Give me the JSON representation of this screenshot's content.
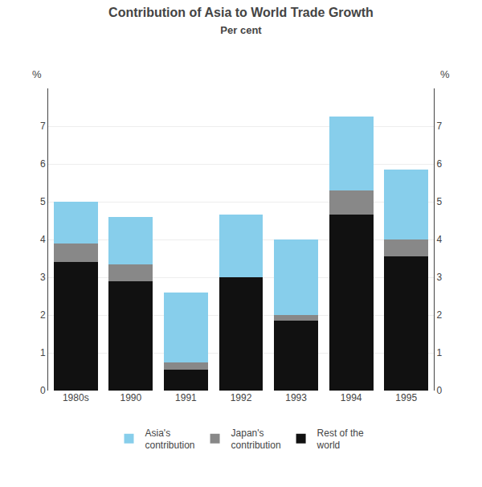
{
  "chart_data": {
    "type": "bar",
    "stacked": true,
    "title": "Contribution of Asia to World Trade Growth",
    "subtitle": "Per cent",
    "categories": [
      "1980s",
      "1990",
      "1991",
      "1992",
      "1993",
      "1994",
      "1995"
    ],
    "series": [
      {
        "name": "Rest of the\nworld",
        "color": "#111111",
        "values": [
          3.4,
          2.9,
          0.55,
          3.0,
          1.85,
          4.65,
          3.55
        ]
      },
      {
        "name": "Japan's\ncontribution",
        "color": "#888888",
        "values": [
          0.5,
          0.45,
          0.2,
          0.0,
          0.15,
          0.65,
          0.45
        ]
      },
      {
        "name": "Asia's\ncontribution",
        "color": "#87ceeb",
        "values": [
          1.1,
          1.25,
          1.85,
          1.65,
          2.0,
          1.95,
          1.85
        ]
      }
    ],
    "ylabel": "%",
    "y2label": "%",
    "ylim": [
      0,
      8
    ],
    "yticks": [
      0,
      1,
      2,
      3,
      4,
      5,
      6,
      7
    ],
    "y2lim": [
      0,
      8
    ],
    "y2ticks": [
      0,
      1,
      2,
      3,
      4,
      5,
      6,
      7
    ],
    "grid": true,
    "legend": "bottom"
  }
}
